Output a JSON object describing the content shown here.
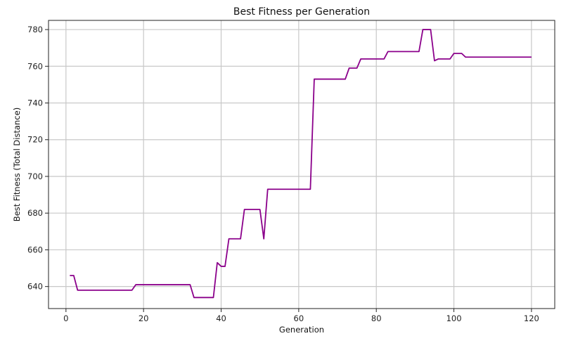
{
  "chart_data": {
    "type": "line",
    "title": "Best Fitness per Generation",
    "xlabel": "Generation",
    "ylabel": "Best Fitness (Total Distance)",
    "xlim": [
      -4.5,
      126
    ],
    "ylim": [
      628,
      785
    ],
    "xticks": [
      0,
      20,
      40,
      60,
      80,
      100,
      120
    ],
    "yticks": [
      640,
      660,
      680,
      700,
      720,
      740,
      760,
      780
    ],
    "grid": true,
    "series": [
      {
        "color": "#8b008b",
        "x": [
          1,
          2,
          3,
          4,
          5,
          6,
          7,
          8,
          9,
          10,
          11,
          12,
          13,
          14,
          15,
          16,
          17,
          18,
          19,
          20,
          21,
          22,
          23,
          24,
          25,
          26,
          27,
          28,
          29,
          30,
          31,
          32,
          33,
          34,
          35,
          36,
          37,
          38,
          39,
          40,
          41,
          42,
          43,
          44,
          45,
          46,
          47,
          48,
          49,
          50,
          51,
          52,
          53,
          54,
          55,
          56,
          57,
          58,
          59,
          60,
          61,
          62,
          63,
          64,
          65,
          66,
          67,
          68,
          69,
          70,
          71,
          72,
          73,
          74,
          75,
          76,
          77,
          78,
          79,
          80,
          81,
          82,
          83,
          84,
          85,
          86,
          87,
          88,
          89,
          90,
          91,
          92,
          93,
          94,
          95,
          96,
          97,
          98,
          99,
          100,
          101,
          102,
          103,
          104,
          105,
          106,
          107,
          108,
          109,
          110,
          111,
          112,
          113,
          114,
          115,
          116,
          117,
          118,
          119,
          120
        ],
        "y": [
          646,
          646,
          638,
          638,
          638,
          638,
          638,
          638,
          638,
          638,
          638,
          638,
          638,
          638,
          638,
          638,
          638,
          641,
          641,
          641,
          641,
          641,
          641,
          641,
          641,
          641,
          641,
          641,
          641,
          641,
          641,
          641,
          634,
          634,
          634,
          634,
          634,
          634,
          653,
          651,
          651,
          666,
          666,
          666,
          666,
          682,
          682,
          682,
          682,
          682,
          666,
          693,
          693,
          693,
          693,
          693,
          693,
          693,
          693,
          693,
          693,
          693,
          693,
          753,
          753,
          753,
          753,
          753,
          753,
          753,
          753,
          753,
          759,
          759,
          759,
          764,
          764,
          764,
          764,
          764,
          764,
          764,
          768,
          768,
          768,
          768,
          768,
          768,
          768,
          768,
          768,
          780,
          780,
          780,
          763,
          764,
          764,
          764,
          764,
          767,
          767,
          767,
          765,
          765,
          765,
          765,
          765,
          765,
          765,
          765,
          765,
          765,
          765,
          765,
          765,
          765,
          765,
          765,
          765,
          765
        ]
      }
    ]
  }
}
